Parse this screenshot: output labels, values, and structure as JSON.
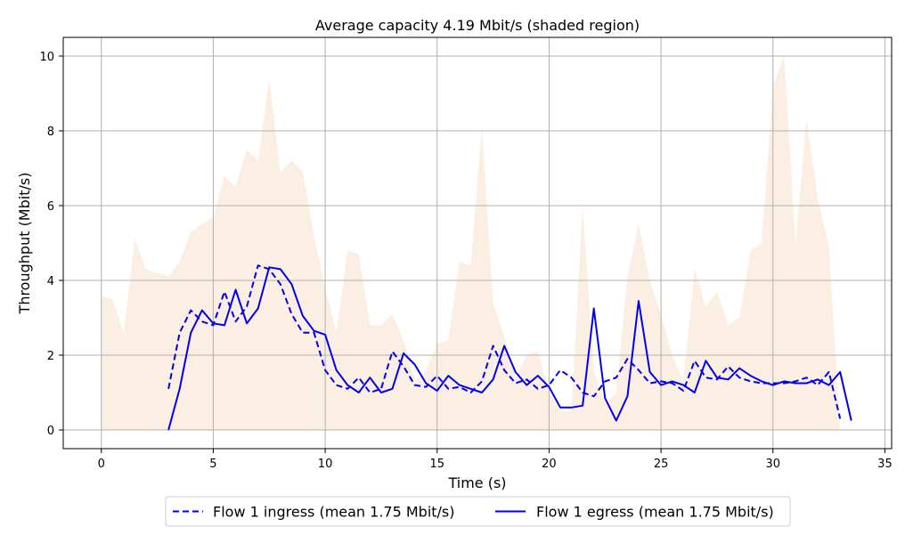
{
  "chart_data": {
    "type": "line",
    "title": "Average capacity 4.19 Mbit/s (shaded region)",
    "xlabel": "Time (s)",
    "ylabel": "Throughput (Mbit/s)",
    "xlim": [
      -1.7,
      35.3
    ],
    "ylim": [
      -0.5,
      10.5
    ],
    "xticks": [
      0,
      5,
      10,
      15,
      20,
      25,
      30,
      35
    ],
    "yticks": [
      0,
      2,
      4,
      6,
      8,
      10
    ],
    "grid": true,
    "legend_position": "bottom-center",
    "capacity": {
      "color": "#fbeee3",
      "x": [
        0,
        0.5,
        1,
        1.5,
        2,
        2.5,
        3,
        3.5,
        4,
        4.5,
        5,
        5.5,
        6,
        6.5,
        7,
        7.5,
        8,
        8.5,
        9,
        9.5,
        10,
        10.5,
        11,
        11.5,
        12,
        12.5,
        13,
        13.5,
        14,
        14.5,
        15,
        15.5,
        16,
        16.5,
        17,
        17.5,
        18,
        18.5,
        19,
        19.5,
        20,
        20.5,
        21,
        21.5,
        22,
        22.5,
        23,
        23.5,
        24,
        24.5,
        25,
        25.5,
        26,
        26.5,
        27,
        27.5,
        28,
        28.5,
        29,
        29.5,
        30,
        30.5,
        31,
        31.5,
        32,
        32.5,
        33
      ],
      "values": [
        3.6,
        3.5,
        2.6,
        5.1,
        4.3,
        4.2,
        4.1,
        4.5,
        5.3,
        5.5,
        5.7,
        6.8,
        6.5,
        7.5,
        7.2,
        9.4,
        6.9,
        7.2,
        6.9,
        5.2,
        3.8,
        2.6,
        4.8,
        4.7,
        2.8,
        2.8,
        3.1,
        2.4,
        1.3,
        1.6,
        2.3,
        2.4,
        4.5,
        4.4,
        8.1,
        3.4,
        2.5,
        1.4,
        2.0,
        2.1,
        1.0,
        0.5,
        0.5,
        6.0,
        1.6,
        0.7,
        1.0,
        4.1,
        5.5,
        4.0,
        3.1,
        2.0,
        1.3,
        4.3,
        3.3,
        3.7,
        2.8,
        3.0,
        4.8,
        5.0,
        9.2,
        10.0,
        5.0,
        8.3,
        6.2,
        4.9,
        0.0
      ]
    },
    "series": [
      {
        "name": "Flow 1 ingress (mean 1.75 Mbit/s)",
        "color": "#0000ee",
        "dashed": true,
        "x": [
          3,
          3.5,
          4,
          4.5,
          5,
          5.5,
          6,
          6.5,
          7,
          7.5,
          8,
          8.5,
          9,
          9.5,
          10,
          10.5,
          11,
          11.5,
          12,
          12.5,
          13,
          13.5,
          14,
          14.5,
          15,
          15.5,
          16,
          16.5,
          17,
          17.5,
          18,
          18.5,
          19,
          19.5,
          20,
          20.5,
          21,
          21.5,
          22,
          22.5,
          23,
          23.5,
          24,
          24.5,
          25,
          25.5,
          26,
          26.5,
          27,
          27.5,
          28,
          28.5,
          29,
          29.5,
          30,
          30.5,
          31,
          31.5,
          32,
          32.5,
          33
        ],
        "values": [
          1.1,
          2.6,
          3.2,
          2.9,
          2.8,
          3.7,
          2.9,
          3.3,
          4.4,
          4.3,
          3.9,
          3.1,
          2.6,
          2.6,
          1.6,
          1.2,
          1.1,
          1.4,
          1.0,
          1.1,
          2.1,
          1.7,
          1.2,
          1.15,
          1.45,
          1.1,
          1.15,
          1.0,
          1.3,
          2.25,
          1.6,
          1.25,
          1.35,
          1.1,
          1.2,
          1.6,
          1.4,
          1.0,
          0.9,
          1.3,
          1.4,
          1.9,
          1.6,
          1.25,
          1.3,
          1.25,
          1.05,
          1.85,
          1.4,
          1.35,
          1.7,
          1.4,
          1.3,
          1.25,
          1.25,
          1.25,
          1.3,
          1.4,
          1.2,
          1.55,
          0.3
        ]
      },
      {
        "name": "Flow 1 egress (mean 1.75 Mbit/s)",
        "color": "#0000ee",
        "dashed": false,
        "x": [
          3,
          3.5,
          4,
          4.5,
          5,
          5.5,
          6,
          6.5,
          7,
          7.5,
          8,
          8.5,
          9,
          9.5,
          10,
          10.5,
          11,
          11.5,
          12,
          12.5,
          13,
          13.5,
          14,
          14.5,
          15,
          15.5,
          16,
          16.5,
          17,
          17.5,
          18,
          18.5,
          19,
          19.5,
          20,
          20.5,
          21,
          21.5,
          22,
          22.5,
          23,
          23.5,
          24,
          24.5,
          25,
          25.5,
          26,
          26.5,
          27,
          27.5,
          28,
          28.5,
          29,
          29.5,
          30,
          30.5,
          31,
          31.5,
          32,
          32.5,
          33,
          33.5
        ],
        "values": [
          0.0,
          1.1,
          2.6,
          3.2,
          2.85,
          2.8,
          3.75,
          2.85,
          3.25,
          4.35,
          4.3,
          3.9,
          3.05,
          2.65,
          2.55,
          1.6,
          1.2,
          1.0,
          1.4,
          1.0,
          1.1,
          2.05,
          1.75,
          1.25,
          1.05,
          1.45,
          1.2,
          1.1,
          1.0,
          1.35,
          2.25,
          1.55,
          1.2,
          1.45,
          1.15,
          0.6,
          0.6,
          0.65,
          3.25,
          0.85,
          0.25,
          0.9,
          3.45,
          1.55,
          1.2,
          1.3,
          1.2,
          1.0,
          1.85,
          1.4,
          1.35,
          1.65,
          1.45,
          1.3,
          1.2,
          1.3,
          1.25,
          1.25,
          1.35,
          1.2,
          1.55,
          0.25
        ]
      }
    ]
  }
}
